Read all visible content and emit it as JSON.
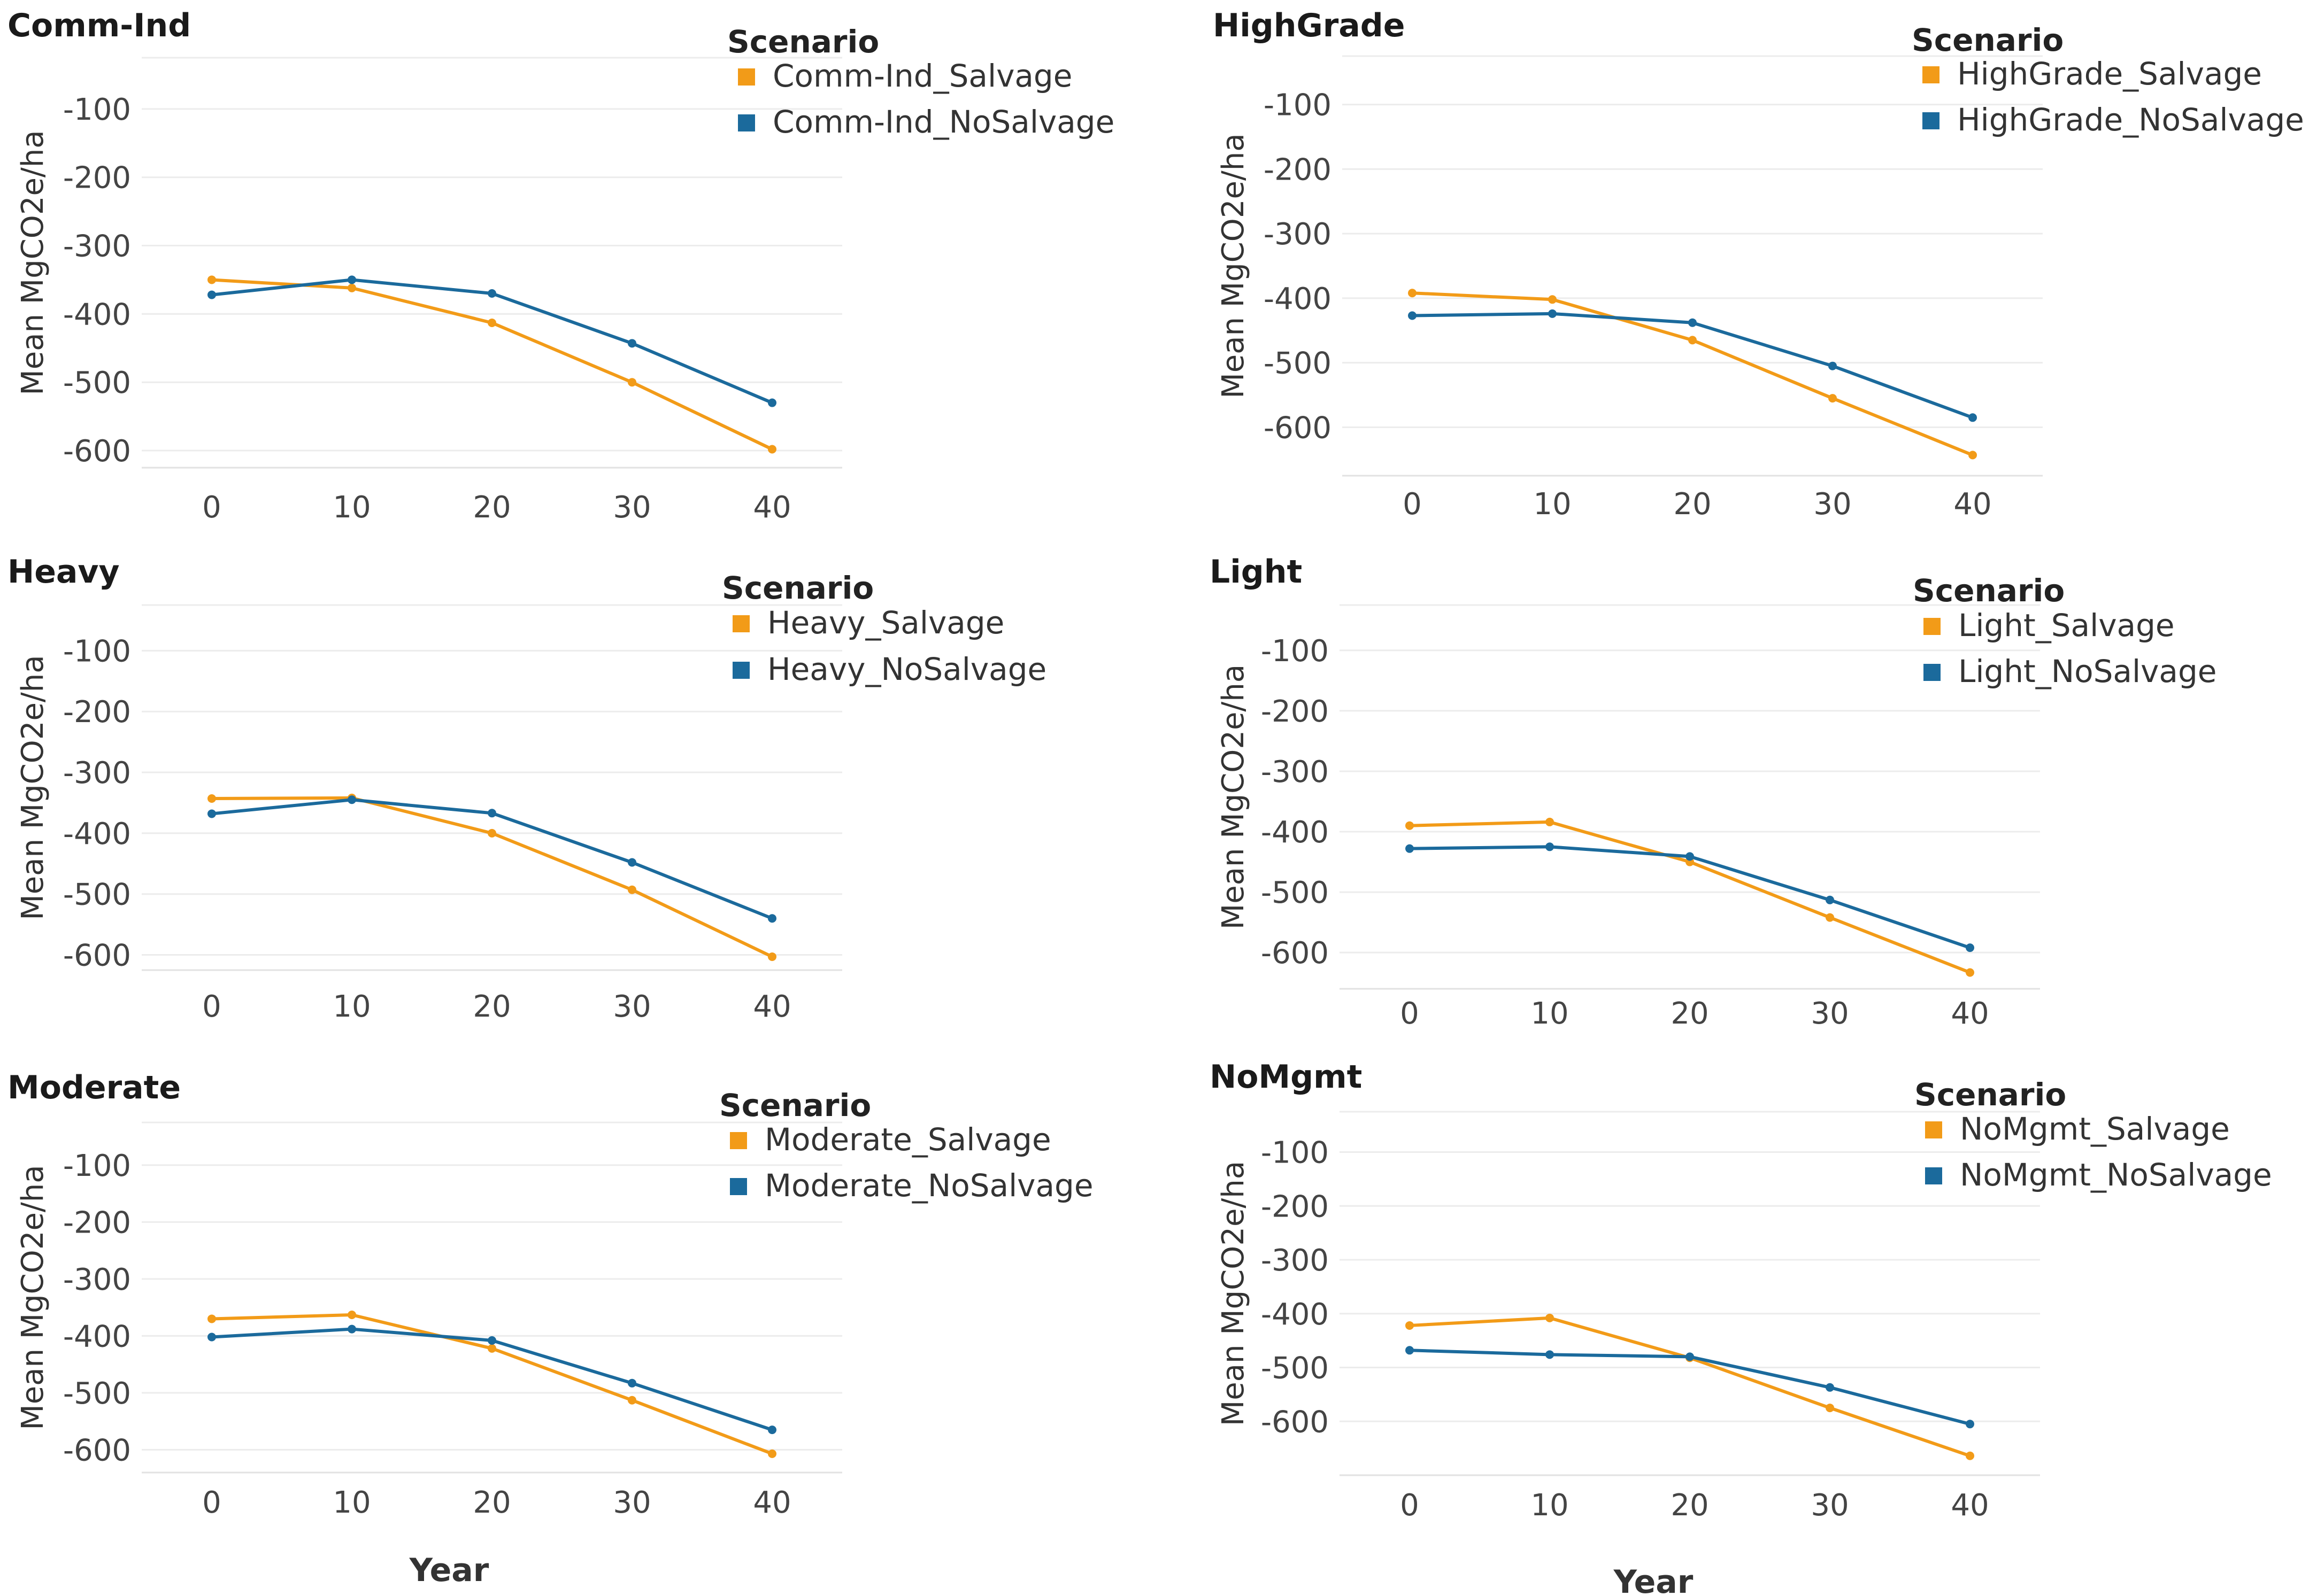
{
  "figure": {
    "ylabel": "Mean MgCO2e/ha",
    "xlabel": "Year",
    "legend_title": "Scenario",
    "colors": {
      "salvage": "#F29B18",
      "nosalvage": "#1B6A9C"
    }
  },
  "chart_data": [
    {
      "type": "line",
      "title": "Comm-Ind",
      "x": [
        0,
        10,
        20,
        30,
        40
      ],
      "xticks": [
        "0",
        "10",
        "20",
        "30",
        "40"
      ],
      "yticks": [
        "-100",
        "-200",
        "-300",
        "-400",
        "-500",
        "-600"
      ],
      "ylim": [
        -625,
        -25
      ],
      "series": [
        {
          "name": "Comm-Ind_Salvage",
          "values": [
            -350,
            -362,
            -413,
            -500,
            -598
          ]
        },
        {
          "name": "Comm-Ind_NoSalvage",
          "values": [
            -372,
            -350,
            -370,
            -443,
            -530
          ]
        }
      ]
    },
    {
      "type": "line",
      "title": "HighGrade",
      "x": [
        0,
        10,
        20,
        30,
        40
      ],
      "xticks": [
        "0",
        "10",
        "20",
        "30",
        "40"
      ],
      "yticks": [
        "-100",
        "-200",
        "-300",
        "-400",
        "-500",
        "-600"
      ],
      "ylim": [
        -675,
        -25
      ],
      "series": [
        {
          "name": "HighGrade_Salvage",
          "values": [
            -392,
            -402,
            -465,
            -555,
            -643
          ]
        },
        {
          "name": "HighGrade_NoSalvage",
          "values": [
            -427,
            -424,
            -438,
            -505,
            -585
          ]
        }
      ]
    },
    {
      "type": "line",
      "title": "Heavy",
      "x": [
        0,
        10,
        20,
        30,
        40
      ],
      "xticks": [
        "0",
        "10",
        "20",
        "30",
        "40"
      ],
      "yticks": [
        "-100",
        "-200",
        "-300",
        "-400",
        "-500",
        "-600"
      ],
      "ylim": [
        -625,
        -25
      ],
      "series": [
        {
          "name": "Heavy_Salvage",
          "values": [
            -343,
            -342,
            -400,
            -493,
            -603
          ]
        },
        {
          "name": "Heavy_NoSalvage",
          "values": [
            -368,
            -345,
            -367,
            -448,
            -540
          ]
        }
      ]
    },
    {
      "type": "line",
      "title": "Light",
      "x": [
        0,
        10,
        20,
        30,
        40
      ],
      "xticks": [
        "0",
        "10",
        "20",
        "30",
        "40"
      ],
      "yticks": [
        "-100",
        "-200",
        "-300",
        "-400",
        "-500",
        "-600"
      ],
      "ylim": [
        -660,
        -25
      ],
      "series": [
        {
          "name": "Light_Salvage",
          "values": [
            -390,
            -384,
            -450,
            -542,
            -633
          ]
        },
        {
          "name": "Light_NoSalvage",
          "values": [
            -428,
            -425,
            -441,
            -513,
            -592
          ]
        }
      ]
    },
    {
      "type": "line",
      "title": "Moderate",
      "x": [
        0,
        10,
        20,
        30,
        40
      ],
      "xticks": [
        "0",
        "10",
        "20",
        "30",
        "40"
      ],
      "yticks": [
        "-100",
        "-200",
        "-300",
        "-400",
        "-500",
        "-600"
      ],
      "ylim": [
        -640,
        -25
      ],
      "series": [
        {
          "name": "Moderate_Salvage",
          "values": [
            -370,
            -363,
            -422,
            -513,
            -607
          ]
        },
        {
          "name": "Moderate_NoSalvage",
          "values": [
            -402,
            -388,
            -408,
            -483,
            -565
          ]
        }
      ]
    },
    {
      "type": "line",
      "title": "NoMgmt",
      "x": [
        0,
        10,
        20,
        30,
        40
      ],
      "xticks": [
        "0",
        "10",
        "20",
        "30",
        "40"
      ],
      "yticks": [
        "-100",
        "-200",
        "-300",
        "-400",
        "-500",
        "-600"
      ],
      "ylim": [
        -700,
        -25
      ],
      "series": [
        {
          "name": "NoMgmt_Salvage",
          "values": [
            -422,
            -408,
            -482,
            -575,
            -664
          ]
        },
        {
          "name": "NoMgmt_NoSalvage",
          "values": [
            -468,
            -476,
            -480,
            -537,
            -605
          ]
        }
      ]
    }
  ]
}
